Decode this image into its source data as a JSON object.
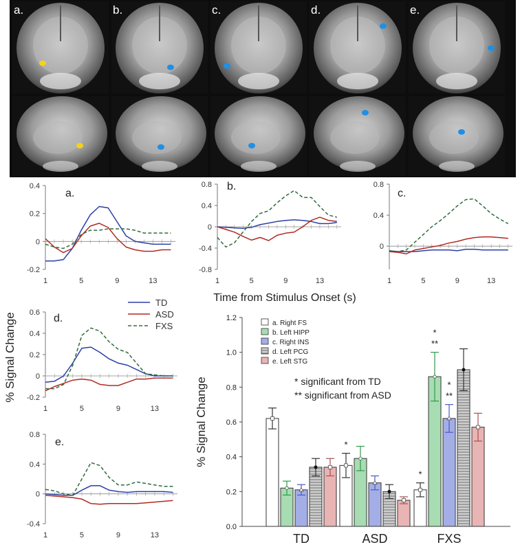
{
  "brain_panels": {
    "labels": [
      "a.",
      "b.",
      "c.",
      "d.",
      "e."
    ],
    "description_colors": {
      "activation_yellow": "#f2d21b",
      "activation_blue": "#1f8fe6"
    }
  },
  "shared": {
    "x_axis_label": "Time from Stimulus Onset (s)",
    "y_axis_label": "% Signal Change",
    "legend": [
      {
        "name": "TD",
        "color": "#2a3fa6",
        "style": "solid"
      },
      {
        "name": "ASD",
        "color": "#b02a20",
        "style": "solid"
      },
      {
        "name": "FXS",
        "color": "#2e6b3c",
        "style": "dashed"
      }
    ]
  },
  "chart_data": [
    {
      "type": "line",
      "panel": "a.",
      "x": [
        1,
        2,
        3,
        4,
        5,
        6,
        7,
        8,
        9,
        10,
        11,
        12,
        13,
        14,
        15
      ],
      "xticks": [
        1,
        5,
        9,
        13
      ],
      "ylim": [
        -0.2,
        0.4
      ],
      "yticks": [
        -0.2,
        0,
        0.2,
        0.4
      ],
      "ytick_labels": [
        "-0.2",
        "0",
        "0.2",
        "0.4"
      ],
      "series": [
        {
          "name": "TD",
          "values": [
            -0.14,
            -0.14,
            -0.13,
            -0.05,
            0.08,
            0.19,
            0.25,
            0.24,
            0.14,
            0.04,
            0,
            -0.01,
            -0.02,
            -0.02,
            -0.02
          ]
        },
        {
          "name": "ASD",
          "values": [
            0.02,
            -0.04,
            -0.08,
            -0.05,
            0.04,
            0.11,
            0.13,
            0.1,
            0.02,
            -0.04,
            -0.06,
            -0.07,
            -0.07,
            -0.06,
            -0.06
          ]
        },
        {
          "name": "FXS",
          "values": [
            -0.02,
            -0.04,
            -0.05,
            -0.02,
            0.05,
            0.08,
            0.08,
            0.09,
            0.09,
            0.09,
            0.08,
            0.06,
            0.06,
            0.06,
            0.06
          ]
        }
      ]
    },
    {
      "type": "line",
      "panel": "b.",
      "x": [
        1,
        2,
        3,
        4,
        5,
        6,
        7,
        8,
        9,
        10,
        11,
        12,
        13,
        14,
        15
      ],
      "xticks": [
        1,
        5,
        9,
        13
      ],
      "ylim": [
        -0.8,
        0.8
      ],
      "yticks": [
        -0.8,
        -0.4,
        0,
        0.4,
        0.8
      ],
      "ytick_labels": [
        "-0.8",
        "-0.4",
        "0",
        "0.4",
        "0.8"
      ],
      "series": [
        {
          "name": "TD",
          "values": [
            0,
            -0.01,
            -0.02,
            -0.03,
            -0.01,
            0.04,
            0.07,
            0.1,
            0.12,
            0.13,
            0.12,
            0.1,
            0.06,
            0.06,
            0.08
          ]
        },
        {
          "name": "ASD",
          "values": [
            0,
            -0.05,
            -0.1,
            -0.18,
            -0.25,
            -0.2,
            -0.26,
            -0.16,
            -0.12,
            -0.1,
            0,
            0.12,
            0.18,
            0.12,
            0.1
          ]
        },
        {
          "name": "FXS",
          "values": [
            -0.2,
            -0.38,
            -0.3,
            -0.1,
            0.1,
            0.25,
            0.3,
            0.45,
            0.58,
            0.68,
            0.55,
            0.55,
            0.38,
            0.22,
            0.18
          ]
        }
      ]
    },
    {
      "type": "line",
      "panel": "c.",
      "x": [
        1,
        2,
        3,
        4,
        5,
        6,
        7,
        8,
        9,
        10,
        11,
        12,
        13,
        14,
        15
      ],
      "xticks": [
        1,
        5,
        9,
        13
      ],
      "ylim": [
        -0.3,
        0.8
      ],
      "yticks": [
        0,
        0.4,
        0.8
      ],
      "ytick_labels": [
        "0",
        "0.4",
        "0.8"
      ],
      "series": [
        {
          "name": "TD",
          "values": [
            -0.06,
            -0.07,
            -0.07,
            -0.07,
            -0.06,
            -0.05,
            -0.05,
            -0.05,
            -0.06,
            -0.04,
            -0.04,
            -0.05,
            -0.05,
            -0.05,
            -0.05
          ]
        },
        {
          "name": "ASD",
          "values": [
            -0.07,
            -0.08,
            -0.1,
            -0.05,
            -0.03,
            -0.01,
            0.01,
            0.04,
            0.06,
            0.09,
            0.11,
            0.12,
            0.12,
            0.11,
            0.1
          ]
        },
        {
          "name": "FXS",
          "values": [
            -0.06,
            -0.07,
            -0.05,
            0.05,
            0.15,
            0.25,
            0.33,
            0.42,
            0.52,
            0.6,
            0.61,
            0.52,
            0.42,
            0.35,
            0.29
          ]
        }
      ]
    },
    {
      "type": "line",
      "panel": "d.",
      "x": [
        1,
        2,
        3,
        4,
        5,
        6,
        7,
        8,
        9,
        10,
        11,
        12,
        13,
        14,
        15
      ],
      "xticks": [
        1,
        5,
        9,
        13
      ],
      "ylim": [
        -0.2,
        0.6
      ],
      "yticks": [
        -0.2,
        0,
        0.2,
        0.4,
        0.6
      ],
      "ytick_labels": [
        "-0.2",
        "0",
        "0.2",
        "0.4",
        "0.6"
      ],
      "series": [
        {
          "name": "TD",
          "values": [
            -0.06,
            -0.05,
            0,
            0.12,
            0.26,
            0.27,
            0.22,
            0.16,
            0.12,
            0.1,
            0.06,
            0.02,
            0,
            0,
            0
          ]
        },
        {
          "name": "ASD",
          "values": [
            -0.14,
            -0.1,
            -0.07,
            -0.04,
            -0.03,
            -0.04,
            -0.08,
            -0.09,
            -0.09,
            -0.06,
            -0.03,
            -0.03,
            -0.02,
            -0.02,
            -0.02
          ]
        },
        {
          "name": "FXS",
          "values": [
            -0.12,
            -0.12,
            -0.08,
            0.1,
            0.38,
            0.45,
            0.42,
            0.32,
            0.25,
            0.22,
            0.12,
            0.02,
            0.01,
            0,
            0
          ]
        }
      ]
    },
    {
      "type": "line",
      "panel": "e.",
      "x": [
        1,
        2,
        3,
        4,
        5,
        6,
        7,
        8,
        9,
        10,
        11,
        12,
        13,
        14,
        15
      ],
      "xticks": [
        1,
        5,
        9,
        13
      ],
      "ylim": [
        -0.4,
        0.8
      ],
      "yticks": [
        -0.4,
        0,
        0.4,
        0.8
      ],
      "ytick_labels": [
        "-0.4",
        "0",
        "0.4",
        "0.8"
      ],
      "series": [
        {
          "name": "TD",
          "values": [
            0,
            -0.01,
            -0.02,
            -0.02,
            0.05,
            0.11,
            0.11,
            0.05,
            0.03,
            0.02,
            0.03,
            0.03,
            0.03,
            0.03,
            0.02
          ]
        },
        {
          "name": "ASD",
          "values": [
            -0.02,
            -0.03,
            -0.04,
            -0.05,
            -0.07,
            -0.13,
            -0.14,
            -0.13,
            -0.13,
            -0.13,
            -0.13,
            -0.12,
            -0.11,
            -0.1,
            -0.09
          ]
        },
        {
          "name": "FXS",
          "values": [
            0.06,
            0.04,
            0,
            -0.02,
            0.2,
            0.42,
            0.38,
            0.22,
            0.12,
            0.12,
            0.16,
            0.14,
            0.12,
            0.1,
            0.1
          ]
        }
      ]
    },
    {
      "type": "bar",
      "panel": "summary",
      "categories": [
        "TD",
        "ASD",
        "FXS"
      ],
      "ylim": [
        0,
        1.2
      ],
      "yticks": [
        0,
        0.2,
        0.4,
        0.6,
        0.8,
        1.0,
        1.2
      ],
      "ytick_labels": [
        "0.0",
        "0.2",
        "0.4",
        "0.6",
        "0.8",
        "1.0",
        "1.2"
      ],
      "ylabel": "% Signal Change",
      "series": [
        {
          "name": "a. Right FS",
          "values": [
            0.62,
            0.35,
            0.21
          ],
          "errors": [
            0.06,
            0.07,
            0.04
          ],
          "fill": "#ffffff",
          "marker": "square"
        },
        {
          "name": "b. Left HIPP",
          "values": [
            0.22,
            0.39,
            0.86
          ],
          "errors": [
            0.04,
            0.07,
            0.14
          ],
          "fill": "#a8dcb2",
          "marker": "circle"
        },
        {
          "name": "c. Right INS",
          "values": [
            0.21,
            0.25,
            0.62
          ],
          "errors": [
            0.03,
            0.04,
            0.08
          ],
          "fill": "#a4aee6",
          "marker": "triangle"
        },
        {
          "name": "d. Left PCG",
          "values": [
            0.34,
            0.2,
            0.9
          ],
          "errors": [
            0.05,
            0.04,
            0.12
          ],
          "fill": "#cfcfcf",
          "marker": "dot"
        },
        {
          "name": "e. Left STG",
          "values": [
            0.34,
            0.15,
            0.57
          ],
          "errors": [
            0.05,
            0.02,
            0.08
          ],
          "fill": "#e9b4b4",
          "marker": "square"
        }
      ],
      "significance": [
        {
          "category": "ASD",
          "series": 0,
          "label": "*"
        },
        {
          "category": "FXS",
          "series": 0,
          "label": "*"
        },
        {
          "category": "FXS",
          "series": 1,
          "label": "*"
        },
        {
          "category": "FXS",
          "series": 1,
          "label": "**"
        },
        {
          "category": "FXS",
          "series": 2,
          "label": "*"
        },
        {
          "category": "FXS",
          "series": 2,
          "label": "**"
        }
      ],
      "notes": [
        "* significant from TD",
        "** significant from ASD"
      ]
    }
  ]
}
